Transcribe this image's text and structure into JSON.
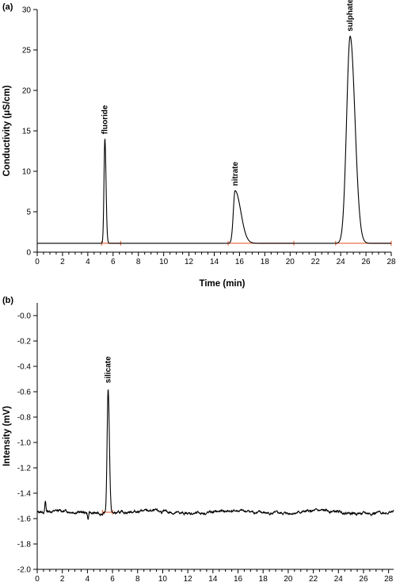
{
  "chart_data": [
    {
      "panel": "(a)",
      "type": "line",
      "xlabel": "Time (min)",
      "ylabel": "Conductivity (μS/cm)",
      "xlim": [
        0,
        28
      ],
      "ylim": [
        0,
        30
      ],
      "x_ticks": [
        "0",
        "2",
        "4",
        "6",
        "8",
        "10",
        "12",
        "14",
        "16",
        "18",
        "20",
        "22",
        "24",
        "26",
        "28"
      ],
      "y_ticks": [
        "0",
        "5",
        "10",
        "15",
        "20",
        "25",
        "30"
      ],
      "baseline": 1.1,
      "peaks": [
        {
          "name": "fluoride",
          "x": 5.35,
          "height": 12.9,
          "sigma_left": 0.07,
          "sigma_right": 0.09,
          "integration": [
            5.1,
            6.6
          ]
        },
        {
          "name": "nitrate",
          "x": 15.65,
          "height": 6.5,
          "sigma_left": 0.14,
          "sigma_right": 0.45,
          "integration": [
            15.1,
            20.3
          ]
        },
        {
          "name": "sulphate",
          "x": 24.75,
          "height": 25.6,
          "sigma_left": 0.28,
          "sigma_right": 0.38,
          "integration": [
            23.6,
            28.0
          ]
        }
      ],
      "integration_color": "#e8734a",
      "grid": false,
      "legend": "none"
    },
    {
      "panel": "(b)",
      "type": "line",
      "xlabel": "Time (min)",
      "ylabel": "Intensity (mV)",
      "xlim": [
        0,
        28.4
      ],
      "ylim": [
        -2.0,
        0.1
      ],
      "x_ticks": [
        "0",
        "2",
        "4",
        "6",
        "8",
        "10",
        "12",
        "14",
        "16",
        "18",
        "20",
        "22",
        "24",
        "26",
        "28"
      ],
      "y_ticks": [
        "-0.0",
        "-0.2",
        "-0.4",
        "-0.6",
        "-0.8",
        "-1.0",
        "-1.2",
        "-1.4",
        "-1.6",
        "-1.8",
        "-2.0"
      ],
      "baseline": -1.55,
      "peaks": [
        {
          "name": "silicate",
          "x": 5.65,
          "height": 0.98,
          "sigma_left": 0.08,
          "sigma_right": 0.1,
          "integration": [
            5.2,
            6.0
          ]
        }
      ],
      "disturbances": [
        {
          "x": 0.65,
          "value": -1.47
        },
        {
          "x": 4.05,
          "value": -1.6
        }
      ],
      "integration_color": "#e8734a",
      "grid": false,
      "legend": "none"
    }
  ]
}
